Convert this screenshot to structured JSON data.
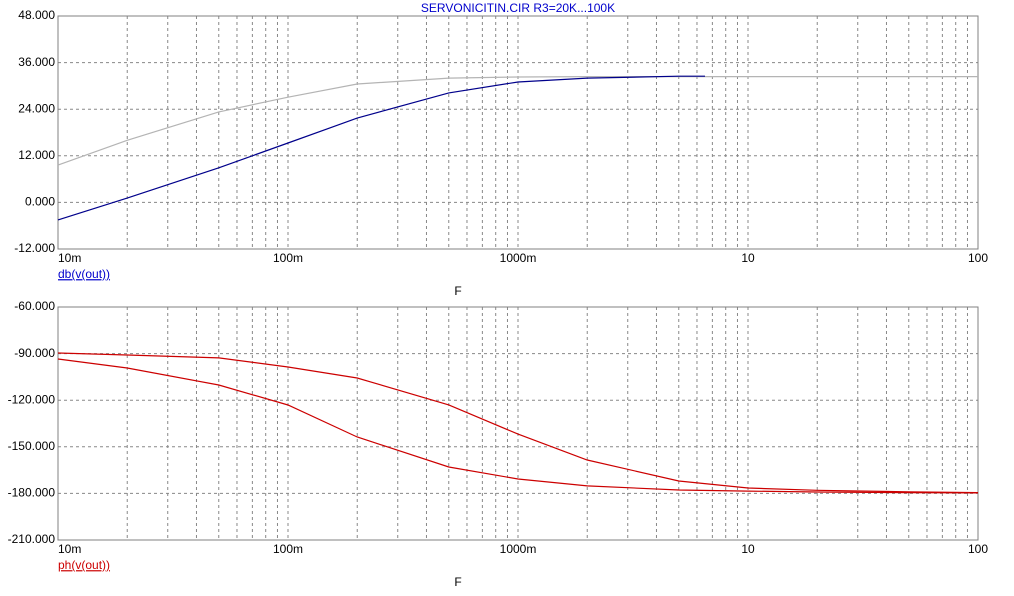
{
  "chart_data": [
    {
      "type": "line",
      "title": "SERVONICITIN.CIR R3=20K...100K",
      "title_color": "#0000cc",
      "ylabel": "db(v(out))",
      "ylabel_color": "#0000cc",
      "xlabel": "F",
      "xscale": "log",
      "grid": true,
      "xlim": [
        0.01,
        100
      ],
      "xticks": [
        {
          "value": 0.01,
          "label": "10m"
        },
        {
          "value": 0.1,
          "label": "100m"
        },
        {
          "value": 1,
          "label": "1000m"
        },
        10,
        100
      ],
      "ylim": [
        -12,
        48
      ],
      "yticks": [
        {
          "value": -12,
          "label": "-12.000"
        },
        {
          "value": 0,
          "label": "0.000"
        },
        {
          "value": 12,
          "label": "12.000"
        },
        {
          "value": 24,
          "label": "24.000"
        },
        {
          "value": 36,
          "label": "36.000"
        },
        {
          "value": 48,
          "label": "48.000"
        }
      ],
      "x": [
        0.01,
        0.02,
        0.05,
        0.1,
        0.2,
        0.5,
        1,
        2,
        5,
        6.5,
        10,
        20,
        50,
        100
      ],
      "series": [
        {
          "color": "#b4b4b4",
          "values": [
            9.6,
            16,
            23.3,
            27.1,
            30.5,
            32,
            32.3,
            32.4,
            32.4,
            32.4,
            32.4,
            32.4,
            32.4,
            32.4
          ]
        },
        {
          "color": "#00008b",
          "values": [
            -4.5,
            1.1,
            8.9,
            15.3,
            21.7,
            28.2,
            31,
            32,
            32.5,
            32.5,
            null,
            null,
            null,
            null
          ]
        }
      ]
    },
    {
      "type": "line",
      "ylabel": "ph(v(out))",
      "ylabel_color": "#cc0000",
      "xlabel": "F",
      "xscale": "log",
      "grid": true,
      "xlim": [
        0.01,
        100
      ],
      "xticks": [
        {
          "value": 0.01,
          "label": "10m"
        },
        {
          "value": 0.1,
          "label": "100m"
        },
        {
          "value": 1,
          "label": "1000m"
        },
        10,
        100
      ],
      "ylim": [
        -210,
        -60
      ],
      "yticks": [
        {
          "value": -210,
          "label": "-210.000"
        },
        {
          "value": -180,
          "label": "-180.000"
        },
        {
          "value": -150,
          "label": "-150.000"
        },
        {
          "value": -120,
          "label": "-120.000"
        },
        {
          "value": -90,
          "label": "-90.000"
        },
        {
          "value": -60,
          "label": "-60.000"
        }
      ],
      "x": [
        0.01,
        0.02,
        0.05,
        0.1,
        0.2,
        0.5,
        1,
        2,
        5,
        10,
        20,
        50,
        100
      ],
      "series": [
        {
          "color": "#cc0000",
          "values": [
            -89.6,
            -90.9,
            -92.8,
            -98.6,
            -105.7,
            -123,
            -141.8,
            -158.5,
            -172,
            -176.5,
            -178,
            -179,
            -179.5
          ]
        },
        {
          "color": "#cc0000",
          "values": [
            -93.5,
            -99.3,
            -110.2,
            -123.1,
            -143.7,
            -163,
            -170.7,
            -175.2,
            -177.8,
            -178.5,
            -179.1,
            -179.5,
            -179.7
          ]
        }
      ]
    }
  ]
}
